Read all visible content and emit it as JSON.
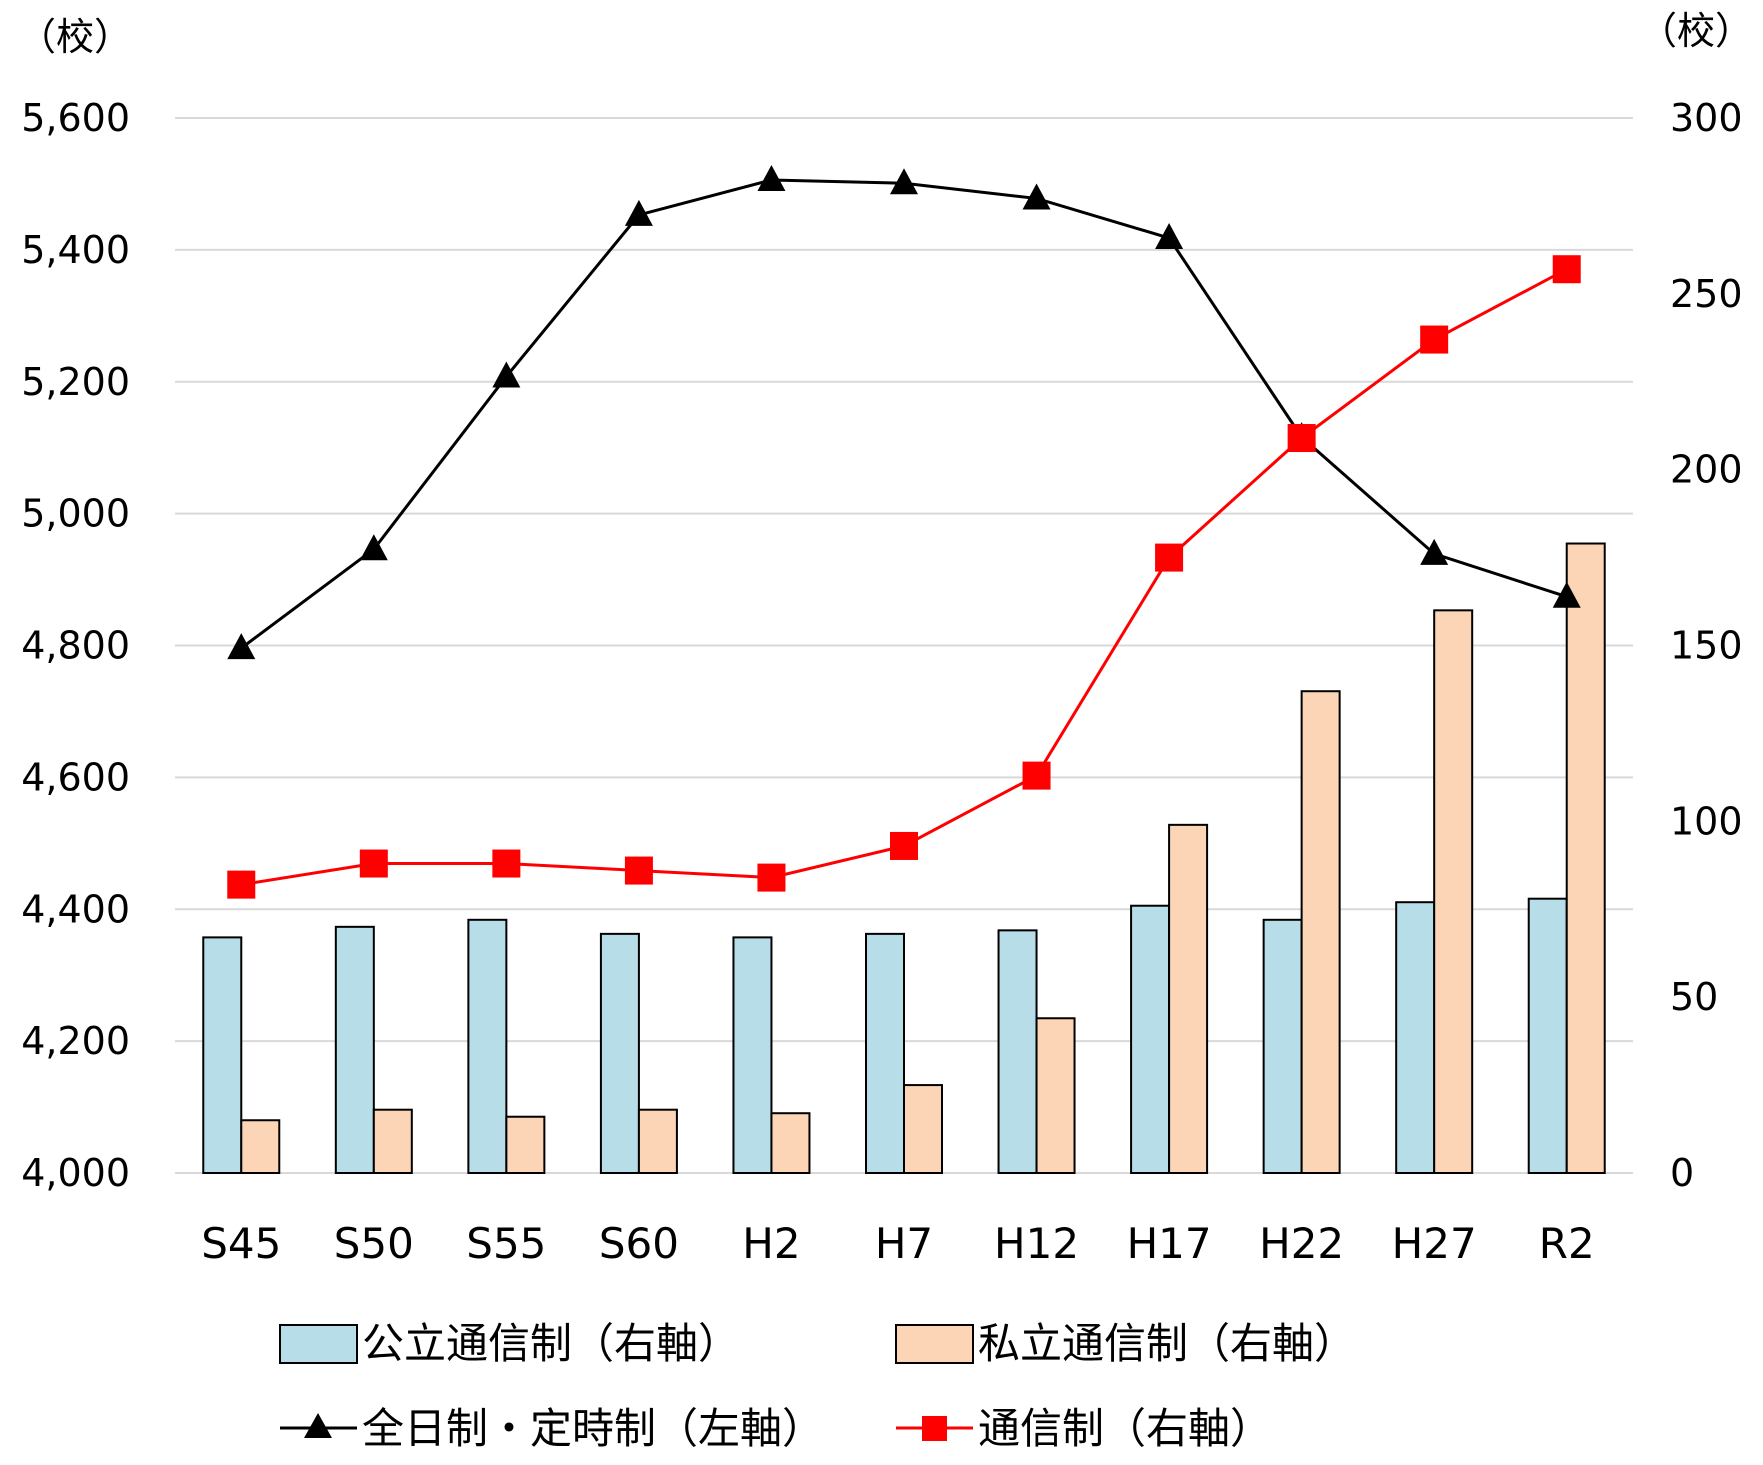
{
  "chart_data": {
    "type": "bar",
    "categories": [
      "S45",
      "S50",
      "S55",
      "S60",
      "H2",
      "H7",
      "H12",
      "H17",
      "H22",
      "H27",
      "R2"
    ],
    "left_axis": {
      "unit": "（校）",
      "ylim": [
        4000,
        5600
      ],
      "ticks": [
        "4,000",
        "4,200",
        "4,400",
        "4,600",
        "4,800",
        "5,000",
        "5,200",
        "5,400",
        "5,600"
      ]
    },
    "right_axis": {
      "unit": "（校）",
      "ylim": [
        0,
        300
      ],
      "ticks": [
        "0",
        "50",
        "100",
        "150",
        "200",
        "250",
        "300"
      ]
    },
    "series": [
      {
        "name": "公立通信制（右軸）",
        "kind": "bar",
        "axis": "right",
        "color": "#b7dde8",
        "values": [
          67,
          70,
          72,
          68,
          67,
          68,
          69,
          76,
          72,
          77,
          78
        ]
      },
      {
        "name": "私立通信制（右軸）",
        "kind": "bar",
        "axis": "right",
        "color": "#fbd5b5",
        "values": [
          15,
          18,
          16,
          18,
          17,
          25,
          44,
          99,
          137,
          160,
          179
        ]
      },
      {
        "name": "全日制・定時制（左軸）",
        "kind": "line",
        "axis": "left",
        "color": "#000000",
        "marker": "triangle",
        "values": [
          4796,
          4946,
          5208,
          5453,
          5506,
          5501,
          5478,
          5418,
          5116,
          4939,
          4874
        ]
      },
      {
        "name": "通信制（右軸）",
        "kind": "line",
        "axis": "right",
        "color": "#ff0000",
        "marker": "square",
        "values": [
          82,
          88,
          88,
          86,
          84,
          93,
          113,
          175,
          209,
          237,
          257
        ]
      }
    ],
    "grid": true,
    "legend_position": "bottom"
  }
}
